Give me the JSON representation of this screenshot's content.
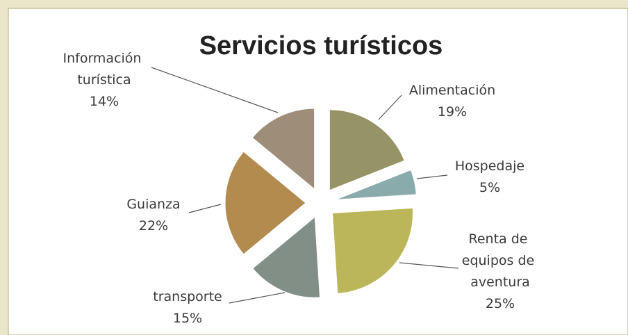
{
  "chart_data": {
    "type": "pie",
    "title": "Servicios turísticos",
    "categories": [
      "Alimentación",
      "Hospedaje",
      "Renta de equipos de aventura",
      "transporte",
      "Guianza",
      "Información turística"
    ],
    "values": [
      19,
      5,
      25,
      15,
      22,
      14
    ],
    "value_labels": [
      "19%",
      "5%",
      "25%",
      "15%",
      "22%",
      "14%"
    ],
    "colors": [
      "#969466",
      "#8aabab",
      "#bcb65a",
      "#828f87",
      "#b38b4f",
      "#9e8d78"
    ]
  }
}
